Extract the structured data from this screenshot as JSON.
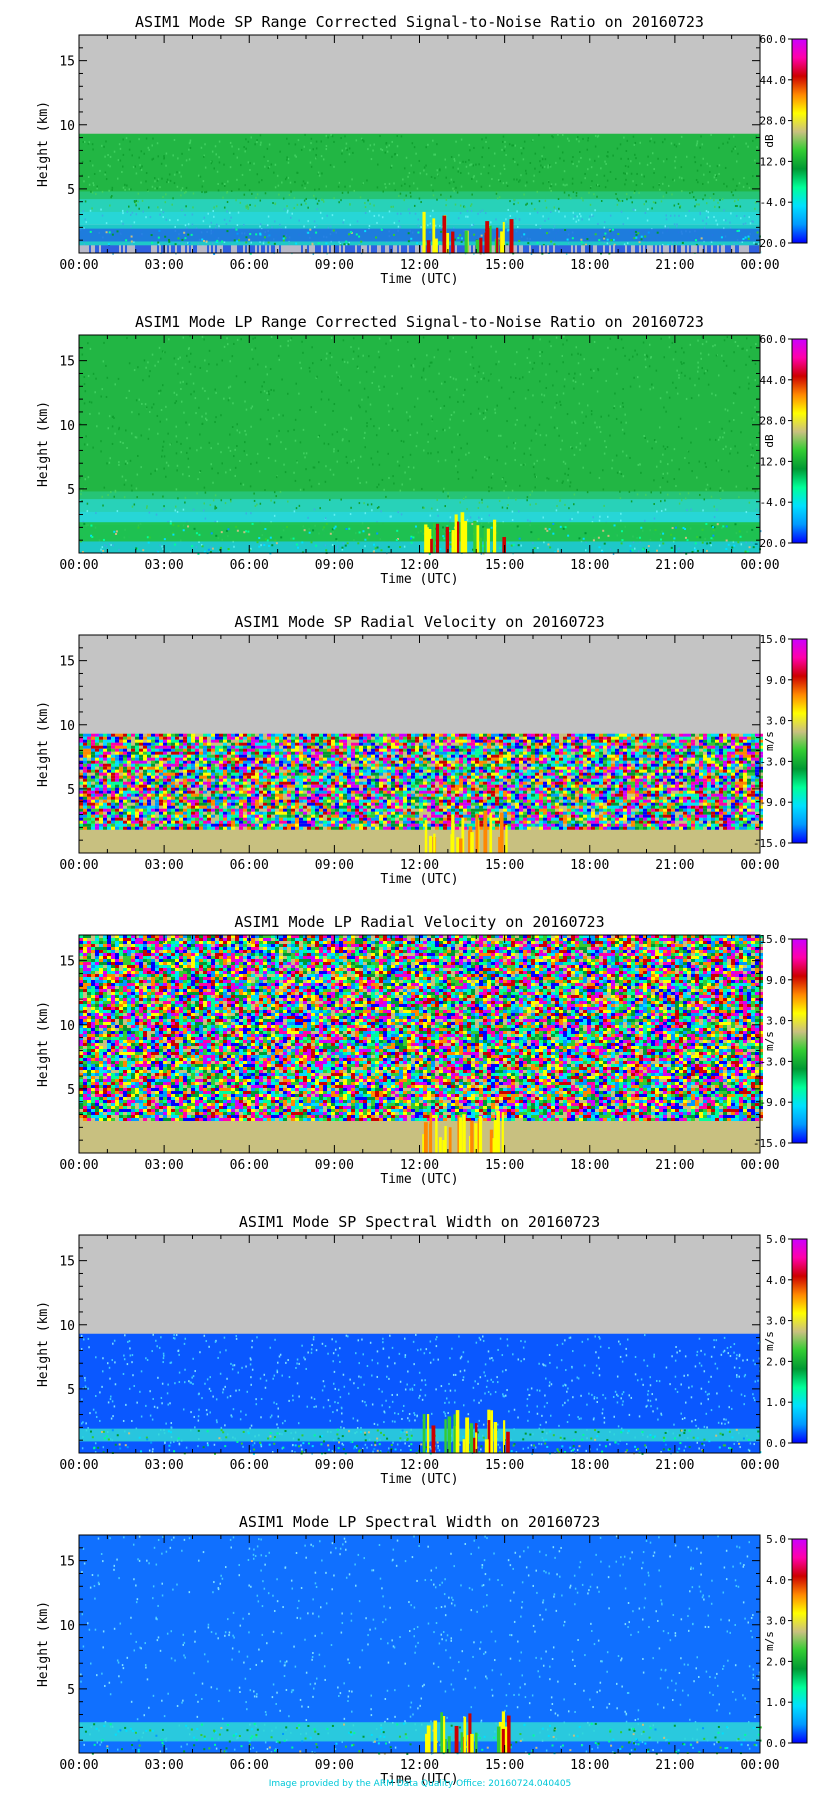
{
  "colors": {
    "missing": "#c4c4c4",
    "axis": "#000000",
    "footer": "#00c8d8",
    "colorbar_stops": [
      "#0000ff",
      "#0099ff",
      "#00e0ff",
      "#00ff99",
      "#009933",
      "#33cc33",
      "#c8c080",
      "#ffff00",
      "#ff8800",
      "#cc0000",
      "#ff00aa",
      "#cc00ff"
    ]
  },
  "footer": "Image provided by the ARM Data Quality Office: 20160724.040405",
  "panels": [
    {
      "title": "ASIM1 Mode SP Range Corrected Signal-to-Noise Ratio on 20160723",
      "xlabel": "Time (UTC)",
      "ylabel": "Height (km)",
      "x_ticks": [
        "00:00",
        "03:00",
        "06:00",
        "09:00",
        "12:00",
        "15:00",
        "18:00",
        "21:00",
        "00:00"
      ],
      "y_ticks": [
        "5",
        "10",
        "15"
      ],
      "cbar_unit": "dB",
      "cbar_ticks": [
        "60.0",
        "44.0",
        "28.0",
        "12.0",
        "-4.0",
        "-20.0"
      ]
    },
    {
      "title": "ASIM1 Mode LP Range Corrected Signal-to-Noise Ratio on 20160723",
      "xlabel": "Time (UTC)",
      "ylabel": "Height (km)",
      "x_ticks": [
        "00:00",
        "03:00",
        "06:00",
        "09:00",
        "12:00",
        "15:00",
        "18:00",
        "21:00",
        "00:00"
      ],
      "y_ticks": [
        "5",
        "10",
        "15"
      ],
      "cbar_unit": "dB",
      "cbar_ticks": [
        "60.0",
        "44.0",
        "28.0",
        "12.0",
        "-4.0",
        "-20.0"
      ]
    },
    {
      "title": "ASIM1 Mode SP Radial Velocity  on 20160723",
      "xlabel": "Time (UTC)",
      "ylabel": "Height (km)",
      "x_ticks": [
        "00:00",
        "03:00",
        "06:00",
        "09:00",
        "12:00",
        "15:00",
        "18:00",
        "21:00",
        "00:00"
      ],
      "y_ticks": [
        "5",
        "10",
        "15"
      ],
      "cbar_unit": "m/s",
      "cbar_ticks": [
        "15.0",
        "9.0",
        "3.0",
        "-3.0",
        "-9.0",
        "-15.0"
      ]
    },
    {
      "title": "ASIM1 Mode LP Radial Velocity  on 20160723",
      "xlabel": "Time (UTC)",
      "ylabel": "Height (km)",
      "x_ticks": [
        "00:00",
        "03:00",
        "06:00",
        "09:00",
        "12:00",
        "15:00",
        "18:00",
        "21:00",
        "00:00"
      ],
      "y_ticks": [
        "5",
        "10",
        "15"
      ],
      "cbar_unit": "m/s",
      "cbar_ticks": [
        "15.0",
        "9.0",
        "3.0",
        "-3.0",
        "-9.0",
        "-15.0"
      ]
    },
    {
      "title": "ASIM1 Mode SP Spectral Width  on 20160723",
      "xlabel": "Time (UTC)",
      "ylabel": "Height (km)",
      "x_ticks": [
        "00:00",
        "03:00",
        "06:00",
        "09:00",
        "12:00",
        "15:00",
        "18:00",
        "21:00",
        "00:00"
      ],
      "y_ticks": [
        "5",
        "10",
        "15"
      ],
      "cbar_unit": "m/s",
      "cbar_ticks": [
        "5.0",
        "4.0",
        "3.0",
        "2.0",
        "1.0",
        "0.0"
      ]
    },
    {
      "title": "ASIM1 Mode LP Spectral Width  on 20160723",
      "xlabel": "Time (UTC)",
      "ylabel": "Height (km)",
      "x_ticks": [
        "00:00",
        "03:00",
        "06:00",
        "09:00",
        "12:00",
        "15:00",
        "18:00",
        "21:00",
        "00:00"
      ],
      "y_ticks": [
        "5",
        "10",
        "15"
      ],
      "cbar_unit": "m/s",
      "cbar_ticks": [
        "5.0",
        "4.0",
        "3.0",
        "2.0",
        "1.0",
        "0.0"
      ]
    }
  ],
  "chart_data": [
    {
      "type": "heatmap",
      "title": "ASIM1 Mode SP Range Corrected Signal-to-Noise Ratio on 20160723",
      "xlabel": "Time (UTC)",
      "ylabel": "Height (km)",
      "xlim": [
        "00:00",
        "24:00"
      ],
      "ylim": [
        0,
        17
      ],
      "colorbar": {
        "label": "dB",
        "range": [
          -20,
          60
        ]
      },
      "valid_data_top_km": 9.3,
      "pattern": "green (~15-20 dB) aloft, cyan (~0 dB) below 3 km, enhanced returns near 12:00-15:00 UTC below 3 km",
      "sp": true,
      "mode": "snr",
      "valid_top": 9.3
    },
    {
      "type": "heatmap",
      "title": "ASIM1 Mode LP Range Corrected Signal-to-Noise Ratio on 20160723",
      "xlabel": "Time (UTC)",
      "ylabel": "Height (km)",
      "xlim": [
        "00:00",
        "24:00"
      ],
      "ylim": [
        0,
        17
      ],
      "colorbar": {
        "label": "dB",
        "range": [
          -20,
          60
        ]
      },
      "valid_data_top_km": 17,
      "pattern": "green (~15-20 dB) throughout, cyan below 4 km, green boundary layer below 2 km, convective echoes 12:00-15:00 UTC",
      "sp": false,
      "mode": "snr",
      "valid_top": 17
    },
    {
      "type": "heatmap",
      "title": "ASIM1 Mode SP Radial Velocity  on 20160723",
      "xlabel": "Time (UTC)",
      "ylabel": "Height (km)",
      "xlim": [
        "00:00",
        "24:00"
      ],
      "ylim": [
        0,
        17
      ],
      "colorbar": {
        "label": "m/s",
        "range": [
          -15,
          15
        ]
      },
      "valid_data_top_km": 9.3,
      "pattern": "noise (random velocities) aloft, near-zero velocity (tan) below 2 km, yellow/red echoes 12:00-15:00 UTC",
      "sp": true,
      "mode": "vel",
      "valid_top": 9.3
    },
    {
      "type": "heatmap",
      "title": "ASIM1 Mode LP Radial Velocity  on 20160723",
      "xlabel": "Time (UTC)",
      "ylabel": "Height (km)",
      "xlim": [
        "00:00",
        "24:00"
      ],
      "ylim": [
        0,
        17
      ],
      "colorbar": {
        "label": "m/s",
        "range": [
          -15,
          15
        ]
      },
      "valid_data_top_km": 17,
      "pattern": "noise (random velocities) aloft, near-zero velocity (tan) below 2.5 km, echoes 12:00-15:00 UTC",
      "sp": false,
      "mode": "vel",
      "valid_top": 17
    },
    {
      "type": "heatmap",
      "title": "ASIM1 Mode SP Spectral Width  on 20160723",
      "xlabel": "Time (UTC)",
      "ylabel": "Height (km)",
      "xlim": [
        "00:00",
        "24:00"
      ],
      "ylim": [
        0,
        17
      ],
      "colorbar": {
        "label": "m/s",
        "range": [
          0,
          5
        ]
      },
      "valid_data_top_km": 9.3,
      "pattern": "blue (~0.3 m/s) aloft, cyan band near 1-2 km, wider widths 12:00-15:00 UTC",
      "sp": true,
      "mode": "width",
      "valid_top": 9.3
    },
    {
      "type": "heatmap",
      "title": "ASIM1 Mode LP Spectral Width  on 20160723",
      "xlabel": "Time (UTC)",
      "ylabel": "Height (km)",
      "xlim": [
        "00:00",
        "24:00"
      ],
      "ylim": [
        0,
        17
      ],
      "colorbar": {
        "label": "m/s",
        "range": [
          0,
          5
        ]
      },
      "valid_data_top_km": 17,
      "pattern": "blue (~0.5 m/s) aloft, cyan band below 2.5 km, wider widths 12:00-15:00 UTC",
      "sp": false,
      "mode": "width",
      "valid_top": 17
    }
  ]
}
